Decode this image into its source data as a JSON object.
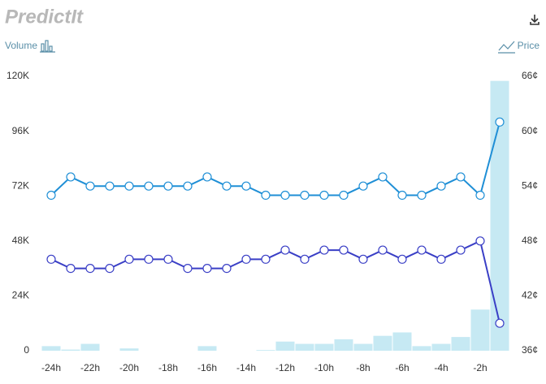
{
  "chart_data": {
    "type": "combo",
    "logo": "PredictIt",
    "y_label": "Volume",
    "y2_label": "Price",
    "x": [
      -24,
      -23,
      -22,
      -21,
      -20,
      -19,
      -18,
      -17,
      -16,
      -15,
      -14,
      -13,
      -12,
      -11,
      -10,
      -9,
      -8,
      -7,
      -6,
      -5,
      -4,
      -3,
      -2,
      -1
    ],
    "xlim": [
      -24.5,
      -0.5
    ],
    "xticks": [
      {
        "value": -24,
        "label": "-24h"
      },
      {
        "value": -22,
        "label": "-22h"
      },
      {
        "value": -20,
        "label": "-20h"
      },
      {
        "value": -18,
        "label": "-18h"
      },
      {
        "value": -16,
        "label": "-16h"
      },
      {
        "value": -14,
        "label": "-14h"
      },
      {
        "value": -12,
        "label": "-12h"
      },
      {
        "value": -10,
        "label": "-10h"
      },
      {
        "value": -8,
        "label": "-8h"
      },
      {
        "value": -6,
        "label": "-6h"
      },
      {
        "value": -4,
        "label": "-4h"
      },
      {
        "value": -2,
        "label": "-2h"
      }
    ],
    "ylim": [
      0,
      120000
    ],
    "yticks": [
      0,
      {
        "value": 24000,
        "label": "24K"
      },
      {
        "value": 48000,
        "label": "48K"
      },
      {
        "value": 72000,
        "label": "72K"
      },
      {
        "value": 96000,
        "label": "96K"
      },
      {
        "value": 120000,
        "label": "120K"
      }
    ],
    "y2lim": [
      36,
      66
    ],
    "y2ticks": [
      {
        "value": 36,
        "label": "36¢"
      },
      {
        "value": 42,
        "label": "42¢"
      },
      {
        "value": 48,
        "label": "48¢"
      },
      {
        "value": 54,
        "label": "54¢"
      },
      {
        "value": 60,
        "label": "60¢"
      },
      {
        "value": 66,
        "label": "66¢"
      }
    ],
    "series": [
      {
        "type": "bar",
        "color": "#c6e9f3",
        "values": [
          2000,
          500,
          3000,
          0,
          1000,
          0,
          0,
          0,
          2000,
          0,
          0,
          300,
          4000,
          3000,
          3000,
          5000,
          3000,
          6500,
          8000,
          2000,
          3000,
          6000,
          18000,
          118000
        ]
      },
      {
        "type": "line",
        "axis": "y2",
        "color": "#1f8fd6",
        "values": [
          53,
          55,
          54,
          54,
          54,
          54,
          54,
          54,
          55,
          54,
          54,
          53,
          53,
          53,
          53,
          53,
          54,
          55,
          53,
          53,
          54,
          55,
          53,
          61
        ]
      },
      {
        "type": "line",
        "axis": "y2",
        "color": "#3a3fc6",
        "values": [
          46,
          45,
          45,
          45,
          46,
          46,
          46,
          45,
          45,
          45,
          46,
          46,
          47,
          46,
          47,
          47,
          46,
          47,
          46,
          47,
          46,
          47,
          48,
          39
        ]
      }
    ]
  }
}
